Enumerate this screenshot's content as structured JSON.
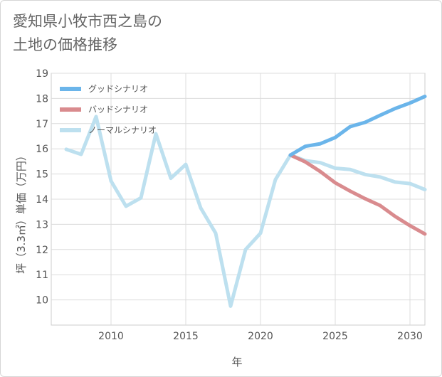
{
  "title_line1": "愛知県小牧市西之島の",
  "title_line2": "土地の価格推移",
  "chart_data": {
    "type": "line",
    "xlabel": "年",
    "ylabel": "坪（3.3㎡）単価（万円）",
    "xlim": [
      2006,
      2031
    ],
    "ylim": [
      9,
      19
    ],
    "xticks": [
      2010,
      2015,
      2020,
      2025,
      2030
    ],
    "yticks": [
      10,
      11,
      12,
      13,
      14,
      15,
      16,
      17,
      18,
      19
    ],
    "grid": true,
    "legend_position": "top-left",
    "series": [
      {
        "name": "グッドシナリオ",
        "color": "#6bb5ea",
        "x": [
          2022,
          2023,
          2024,
          2025,
          2026,
          2027,
          2028,
          2029,
          2030,
          2031
        ],
        "y": [
          15.75,
          16.1,
          16.2,
          16.45,
          16.88,
          17.05,
          17.33,
          17.6,
          17.82,
          18.08
        ]
      },
      {
        "name": "バッドシナリオ",
        "color": "#d98b8e",
        "x": [
          2022,
          2023,
          2024,
          2025,
          2026,
          2027,
          2028,
          2029,
          2030,
          2031
        ],
        "y": [
          15.75,
          15.48,
          15.1,
          14.65,
          14.32,
          14.02,
          13.75,
          13.32,
          12.95,
          12.62
        ]
      },
      {
        "name": "ノーマルシナリオ",
        "color": "#bde0ef",
        "x": [
          2007,
          2008,
          2009,
          2010,
          2011,
          2012,
          2013,
          2014,
          2015,
          2016,
          2017,
          2018,
          2019,
          2020,
          2021,
          2022,
          2023,
          2024,
          2025,
          2026,
          2027,
          2028,
          2029,
          2030,
          2031
        ],
        "y": [
          15.98,
          15.78,
          17.28,
          14.72,
          13.72,
          14.05,
          16.6,
          14.83,
          15.38,
          13.65,
          12.65,
          9.75,
          12.0,
          12.65,
          14.78,
          15.75,
          15.53,
          15.45,
          15.23,
          15.18,
          14.98,
          14.88,
          14.68,
          14.62,
          14.38
        ]
      }
    ]
  }
}
